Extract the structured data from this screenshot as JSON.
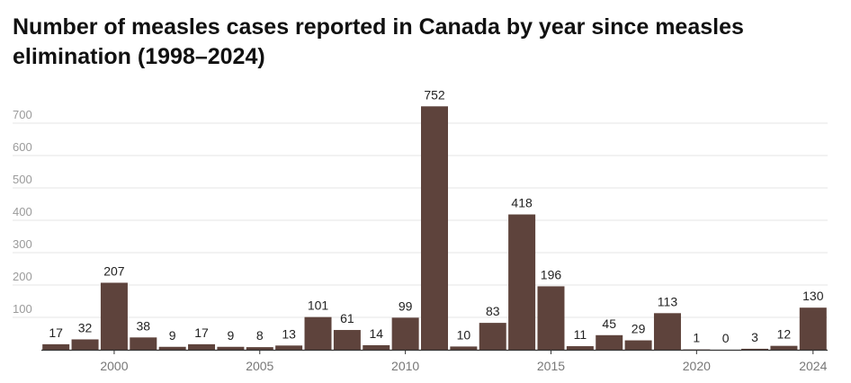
{
  "chart_data": {
    "type": "bar",
    "title": "Number of measles cases reported in Canada by year since measles elimination (1998–2024)",
    "xlabel": "",
    "ylabel": "",
    "categories": [
      1998,
      1999,
      2000,
      2001,
      2002,
      2003,
      2004,
      2005,
      2006,
      2007,
      2008,
      2009,
      2010,
      2011,
      2012,
      2013,
      2014,
      2015,
      2016,
      2017,
      2018,
      2019,
      2020,
      2021,
      2022,
      2023,
      2024
    ],
    "values": [
      17,
      32,
      207,
      38,
      9,
      17,
      9,
      8,
      13,
      101,
      61,
      14,
      99,
      752,
      10,
      83,
      418,
      196,
      11,
      45,
      29,
      113,
      1,
      0,
      3,
      12,
      130
    ],
    "x_tick_labels": [
      "2000",
      "2005",
      "2010",
      "2015",
      "2020",
      "2024"
    ],
    "y_ticks": [
      100,
      200,
      300,
      400,
      500,
      600,
      700
    ],
    "ylim": [
      0,
      780
    ],
    "grid": true,
    "colors": {
      "bar": "#5e433c",
      "grid": "#e4e4e4",
      "axis": "#333333"
    }
  }
}
